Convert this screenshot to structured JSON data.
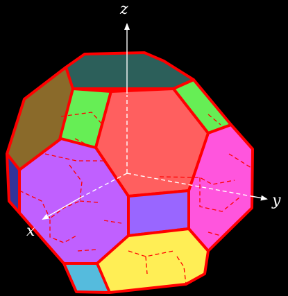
{
  "axes": {
    "x": "x",
    "y": "y",
    "z": "z"
  },
  "colors": {
    "background": "#000000",
    "edge": "#ff0000",
    "axis": "#ffffff",
    "top_octagon": "#2c5f5a",
    "olive_face": "#8a6a2a",
    "green_face": "#66ee55",
    "front_red_hex": "#ff5f5f",
    "magenta_hex": "#ff55dd",
    "purple_hex": "#c060ff",
    "violet_square": "#9966ff",
    "yellow_octagon": "#ffee55",
    "cyan_square": "#55bbdd",
    "navy_square": "#333399"
  }
}
